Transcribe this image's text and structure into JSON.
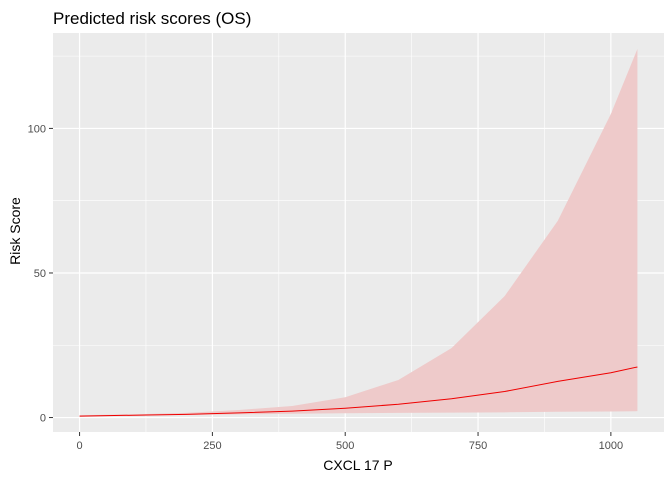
{
  "chart_data": {
    "type": "line",
    "title": "Predicted risk scores (OS)",
    "xlabel": "CXCL 17 P",
    "ylabel": "Risk Score",
    "xlim": [
      -50,
      1100
    ],
    "ylim": [
      -5,
      133
    ],
    "x_ticks": [
      0,
      250,
      500,
      750,
      1000
    ],
    "x_tick_labels": [
      "0",
      "250",
      "500",
      "750",
      "1000"
    ],
    "y_ticks": [
      0,
      50,
      100
    ],
    "y_tick_labels": [
      "0",
      "50",
      "100"
    ],
    "grid": true,
    "background_color": "#ebebeb",
    "grid_color": "#ffffff",
    "line_color": "#ee0000",
    "ribbon_color": "#eecaca",
    "series": [
      {
        "x": [
          0,
          100,
          200,
          300,
          400,
          500,
          600,
          700,
          800,
          900,
          1000,
          1050
        ],
        "y": [
          0.5,
          0.8,
          1.1,
          1.6,
          2.2,
          3.2,
          4.6,
          6.5,
          9.0,
          12.5,
          15.5,
          17.5
        ],
        "lower": [
          0.3,
          0.6,
          0.9,
          1.1,
          1.3,
          1.5,
          1.6,
          1.7,
          1.8,
          2.0,
          2.1,
          2.2
        ],
        "upper": [
          0.8,
          1.1,
          1.6,
          2.6,
          4.0,
          7.0,
          13.0,
          24.0,
          42.0,
          68.0,
          105.0,
          127.5
        ]
      }
    ]
  }
}
